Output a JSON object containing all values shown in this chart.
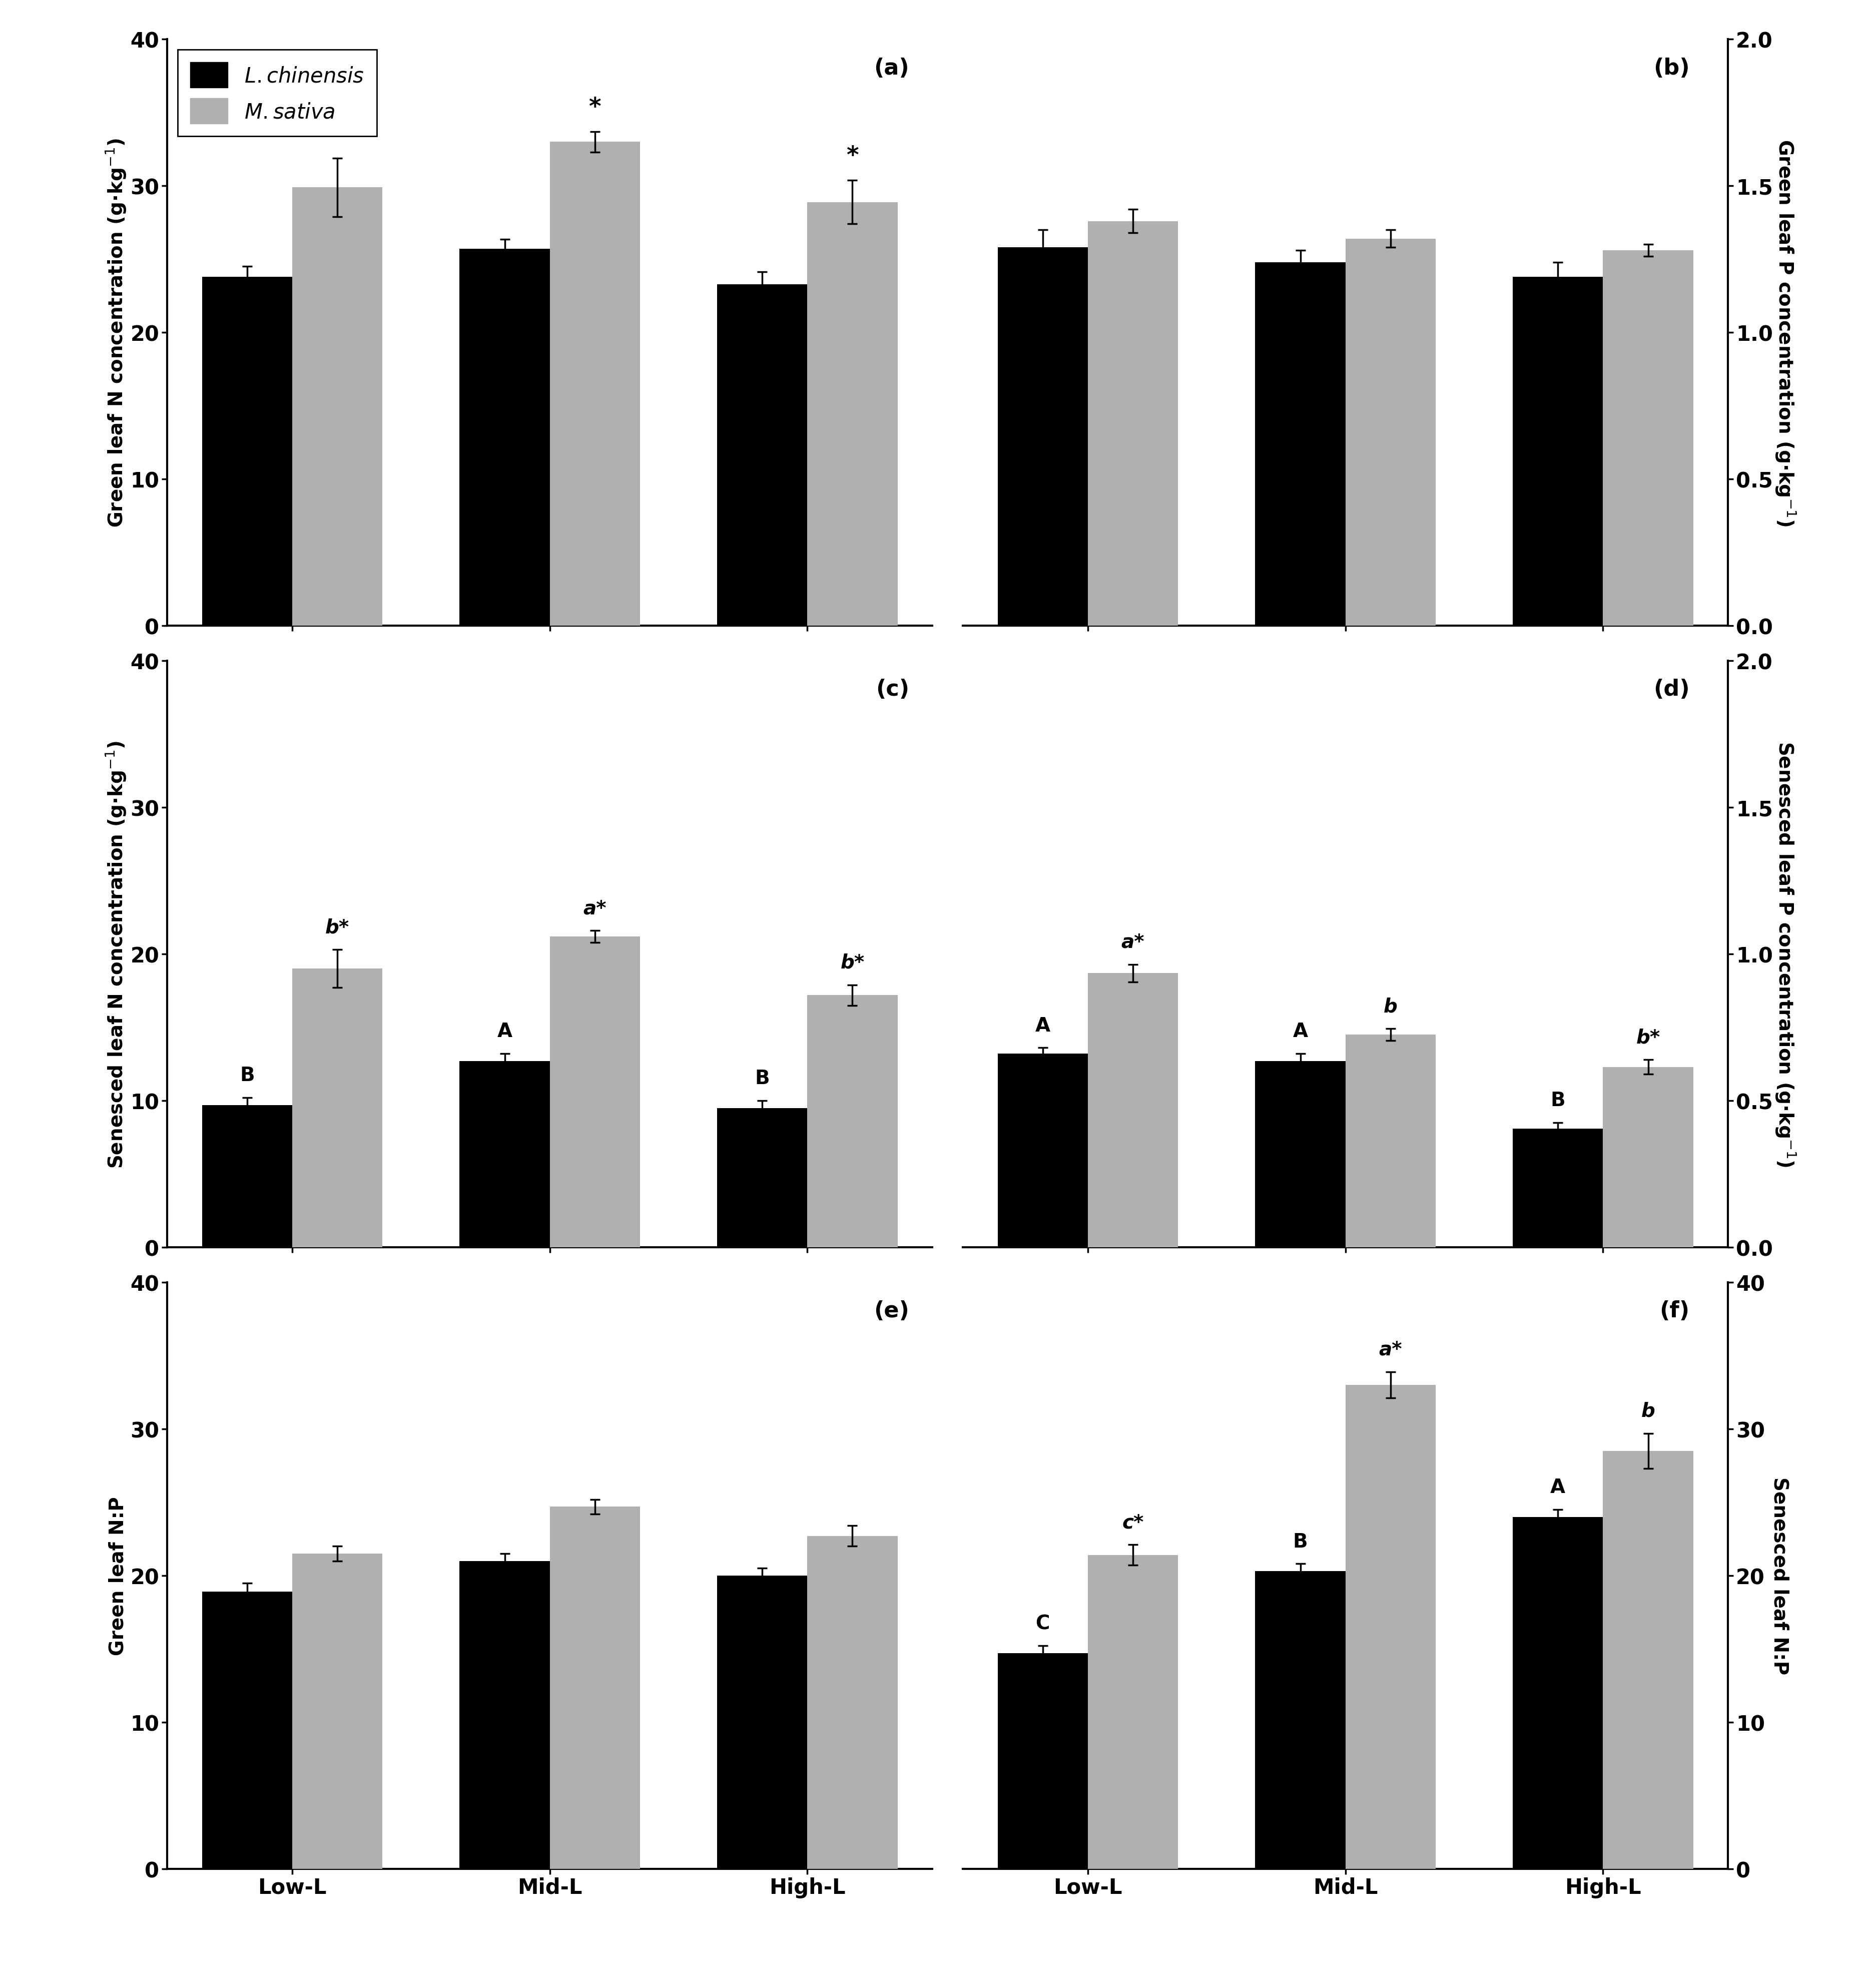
{
  "panels": {
    "a": {
      "label": "(a)",
      "ylabel_left": "Green leaf N concentration (g·kg⁻¹)",
      "ylim": [
        0,
        40
      ],
      "yticks": [
        0,
        10,
        20,
        30,
        40
      ],
      "bars": {
        "Low-L": {
          "black": 23.8,
          "black_err": 0.7,
          "gray": 29.9,
          "gray_err": 2.0
        },
        "Mid-L": {
          "black": 25.7,
          "black_err": 0.65,
          "gray": 33.0,
          "gray_err": 0.7
        },
        "High-L": {
          "black": 23.3,
          "black_err": 0.85,
          "gray": 28.9,
          "gray_err": 1.5
        }
      },
      "annotations": {
        "Low-L": {
          "black": "",
          "gray": "*"
        },
        "Mid-L": {
          "black": "",
          "gray": "*"
        },
        "High-L": {
          "black": "",
          "gray": "*"
        }
      }
    },
    "b": {
      "label": "(b)",
      "ylabel_right": "Green leaf P concentration (g·kg⁻¹)",
      "ylim": [
        0.0,
        2.0
      ],
      "yticks": [
        0.0,
        0.5,
        1.0,
        1.5,
        2.0
      ],
      "bars": {
        "Low-L": {
          "black": 1.29,
          "black_err": 0.06,
          "gray": 1.38,
          "gray_err": 0.04
        },
        "Mid-L": {
          "black": 1.24,
          "black_err": 0.04,
          "gray": 1.32,
          "gray_err": 0.03
        },
        "High-L": {
          "black": 1.19,
          "black_err": 0.05,
          "gray": 1.28,
          "gray_err": 0.02
        }
      },
      "annotations": {
        "Low-L": {
          "black": "",
          "gray": ""
        },
        "Mid-L": {
          "black": "",
          "gray": ""
        },
        "High-L": {
          "black": "",
          "gray": ""
        }
      }
    },
    "c": {
      "label": "(c)",
      "ylabel_left": "Senesced leaf N concentration (g·kg⁻¹)",
      "ylim": [
        0,
        40
      ],
      "yticks": [
        0,
        10,
        20,
        30,
        40
      ],
      "bars": {
        "Low-L": {
          "black": 9.7,
          "black_err": 0.5,
          "gray": 19.0,
          "gray_err": 1.3
        },
        "Mid-L": {
          "black": 12.7,
          "black_err": 0.5,
          "gray": 21.2,
          "gray_err": 0.4
        },
        "High-L": {
          "black": 9.5,
          "black_err": 0.5,
          "gray": 17.2,
          "gray_err": 0.7
        }
      },
      "annotations": {
        "Low-L": {
          "black": "B",
          "gray": "b*"
        },
        "Mid-L": {
          "black": "A",
          "gray": "a*"
        },
        "High-L": {
          "black": "B",
          "gray": "b*"
        }
      }
    },
    "d": {
      "label": "(d)",
      "ylabel_right": "Senesced leaf P concentration (g·kg⁻¹)",
      "ylim": [
        0.0,
        2.0
      ],
      "yticks": [
        0.0,
        0.5,
        1.0,
        1.5,
        2.0
      ],
      "bars": {
        "Low-L": {
          "black": 0.66,
          "black_err": 0.02,
          "gray": 0.935,
          "gray_err": 0.03
        },
        "Mid-L": {
          "black": 0.635,
          "black_err": 0.025,
          "gray": 0.725,
          "gray_err": 0.02
        },
        "High-L": {
          "black": 0.405,
          "black_err": 0.02,
          "gray": 0.615,
          "gray_err": 0.025
        }
      },
      "annotations": {
        "Low-L": {
          "black": "A",
          "gray": "a*"
        },
        "Mid-L": {
          "black": "A",
          "gray": "b"
        },
        "High-L": {
          "black": "B",
          "gray": "b*"
        }
      }
    },
    "e": {
      "label": "(e)",
      "ylabel_left": "Green leaf N:P",
      "ylim": [
        0,
        40
      ],
      "yticks": [
        0,
        10,
        20,
        30,
        40
      ],
      "bars": {
        "Low-L": {
          "black": 18.9,
          "black_err": 0.6,
          "gray": 21.5,
          "gray_err": 0.5
        },
        "Mid-L": {
          "black": 21.0,
          "black_err": 0.5,
          "gray": 24.7,
          "gray_err": 0.5
        },
        "High-L": {
          "black": 20.0,
          "black_err": 0.5,
          "gray": 22.7,
          "gray_err": 0.7
        }
      },
      "annotations": {
        "Low-L": {
          "black": "",
          "gray": ""
        },
        "Mid-L": {
          "black": "",
          "gray": ""
        },
        "High-L": {
          "black": "",
          "gray": ""
        }
      }
    },
    "f": {
      "label": "(f)",
      "ylabel_right": "Senesced leaf N:P",
      "ylim": [
        0,
        40
      ],
      "yticks": [
        0,
        10,
        20,
        30,
        40
      ],
      "bars": {
        "Low-L": {
          "black": 14.7,
          "black_err": 0.5,
          "gray": 21.4,
          "gray_err": 0.7
        },
        "Mid-L": {
          "black": 20.3,
          "black_err": 0.5,
          "gray": 33.0,
          "gray_err": 0.9
        },
        "High-L": {
          "black": 24.0,
          "black_err": 0.5,
          "gray": 28.5,
          "gray_err": 1.2
        }
      },
      "annotations": {
        "Low-L": {
          "black": "C",
          "gray": "c*"
        },
        "Mid-L": {
          "black": "B",
          "gray": "a*"
        },
        "High-L": {
          "black": "A",
          "gray": "b"
        }
      }
    }
  },
  "categories": [
    "Low-L",
    "Mid-L",
    "High-L"
  ],
  "black_color": "#000000",
  "gray_color": "#b0b0b0",
  "bar_width": 0.35,
  "annotation_fontsize": 28,
  "tick_fontsize": 30,
  "label_fontsize": 28,
  "panel_label_fontsize": 32,
  "legend_fontsize": 30
}
